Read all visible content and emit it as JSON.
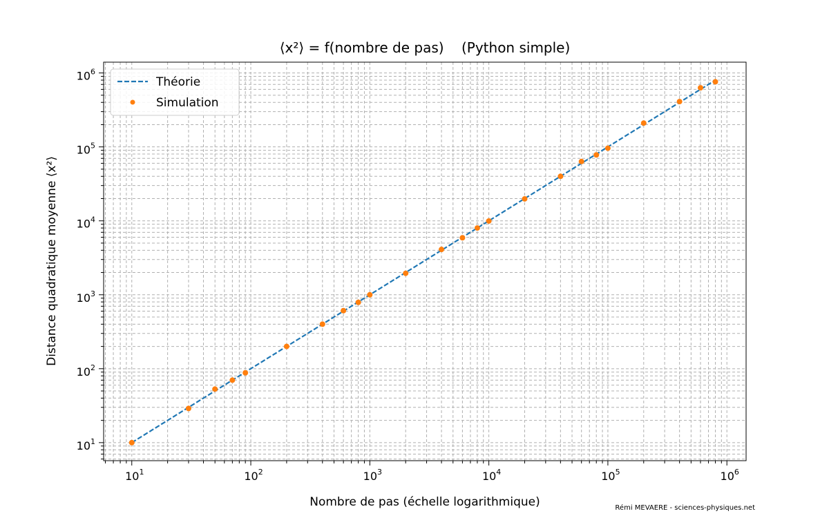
{
  "chart_data": {
    "type": "line",
    "title": "⟨x²⟩ = f(nombre de pas)    (Python simple)",
    "xlabel": "Nombre de pas (échelle logarithmique)",
    "ylabel": "Distance quadratique moyenne ⟨x²⟩",
    "xscale": "log",
    "yscale": "log",
    "xlim": [
      5.8,
      1450000
    ],
    "ylim": [
      5.7,
      1400000
    ],
    "xticks": [
      {
        "value": 10,
        "base": "10",
        "exp": "1"
      },
      {
        "value": 100,
        "base": "10",
        "exp": "2"
      },
      {
        "value": 1000,
        "base": "10",
        "exp": "3"
      },
      {
        "value": 10000,
        "base": "10",
        "exp": "4"
      },
      {
        "value": 100000,
        "base": "10",
        "exp": "5"
      },
      {
        "value": 1000000,
        "base": "10",
        "exp": "6"
      }
    ],
    "yticks": [
      {
        "value": 10,
        "base": "10",
        "exp": "1"
      },
      {
        "value": 100,
        "base": "10",
        "exp": "2"
      },
      {
        "value": 1000,
        "base": "10",
        "exp": "3"
      },
      {
        "value": 10000,
        "base": "10",
        "exp": "4"
      },
      {
        "value": 100000,
        "base": "10",
        "exp": "5"
      },
      {
        "value": 1000000,
        "base": "10",
        "exp": "6"
      }
    ],
    "grid": true,
    "legend_position": "upper-left",
    "series": [
      {
        "name": "Théorie",
        "kind": "line",
        "style": "dashed",
        "color": "#1f77b4",
        "x": [
          10,
          800000
        ],
        "y": [
          10,
          800000
        ]
      },
      {
        "name": "Simulation",
        "kind": "scatter",
        "color": "#ff7f0e",
        "x": [
          10,
          30,
          50,
          70,
          90,
          200,
          400,
          600,
          800,
          1000,
          2000,
          4000,
          6000,
          8000,
          10000,
          20000,
          40000,
          60000,
          80000,
          100000,
          200000,
          400000,
          600000,
          800000
        ],
        "y": [
          10,
          29,
          53,
          70,
          88,
          200,
          400,
          610,
          790,
          1000,
          1950,
          4100,
          5900,
          8000,
          9950,
          19800,
          40000,
          63500,
          78000,
          96000,
          210000,
          410000,
          630000,
          760000
        ]
      }
    ]
  },
  "credit": "Rémi MEVAERE - sciences-physiques.net"
}
